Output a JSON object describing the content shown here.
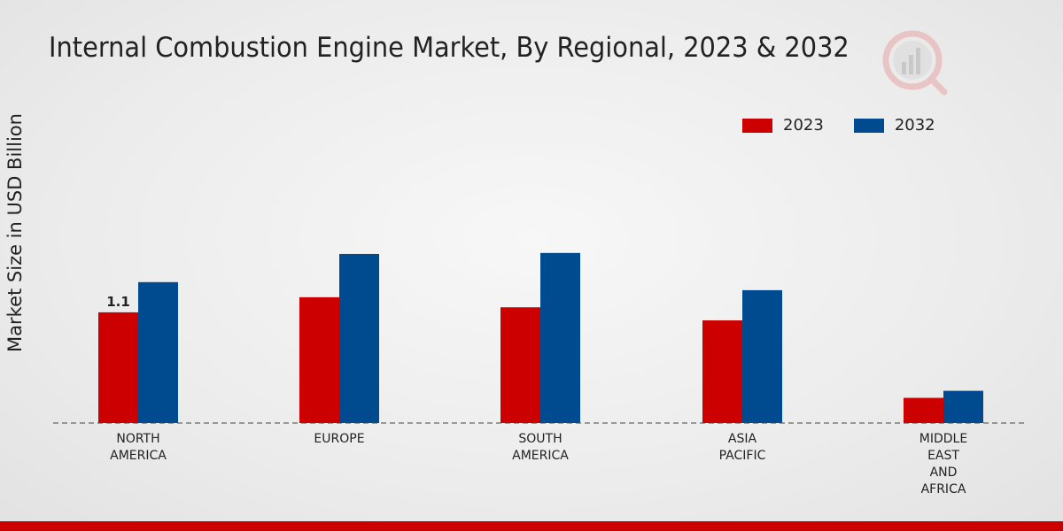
{
  "chart_data": {
    "type": "bar",
    "title": "Internal Combustion Engine Market, By Regional, 2023 & 2032",
    "ylabel": "Market Size in USD Billion",
    "xlabel": "",
    "categories": [
      "NORTH\nAMERICA",
      "EUROPE",
      "SOUTH\nAMERICA",
      "ASIA\nPACIFIC",
      "MIDDLE\nEAST\nAND\nAFRICA"
    ],
    "series": [
      {
        "name": "2023",
        "color": "#cc0000",
        "values": [
          1.1,
          1.25,
          1.15,
          1.02,
          0.25
        ]
      },
      {
        "name": "2032",
        "color": "#004a8f",
        "values": [
          1.4,
          1.68,
          1.69,
          1.32,
          0.32
        ]
      }
    ],
    "data_labels": [
      {
        "series": 0,
        "index": 0,
        "text": "1.1"
      }
    ],
    "ylim": [
      0,
      3.5
    ],
    "legend_position": "top-right",
    "grid": false
  }
}
